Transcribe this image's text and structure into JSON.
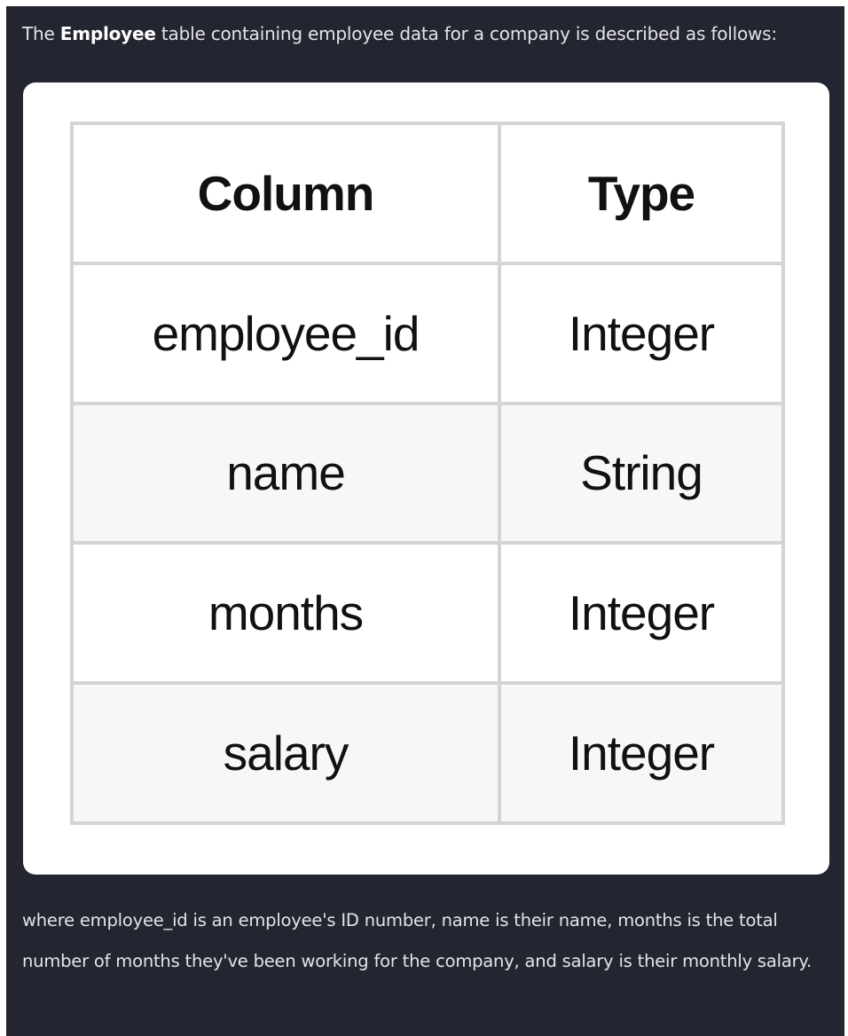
{
  "intro": {
    "prefix": "The ",
    "table_name": "Employee",
    "suffix": " table containing employee data for a company is described as follows:"
  },
  "schema_table": {
    "headers": [
      "Column",
      "Type"
    ],
    "rows": [
      {
        "column": "employee_id",
        "type": "Integer"
      },
      {
        "column": "name",
        "type": "String"
      },
      {
        "column": "months",
        "type": "Integer"
      },
      {
        "column": "salary",
        "type": "Integer"
      }
    ]
  },
  "outro": {
    "text": "where employee_id is an employee's ID number, name is their name, months is the total number of months they've been working for the company, and salary is their monthly salary."
  },
  "colors": {
    "panel_bg": "#232530",
    "card_bg": "#ffffff",
    "table_border": "#d4d4d4",
    "striped_row": "#f7f7f7"
  }
}
